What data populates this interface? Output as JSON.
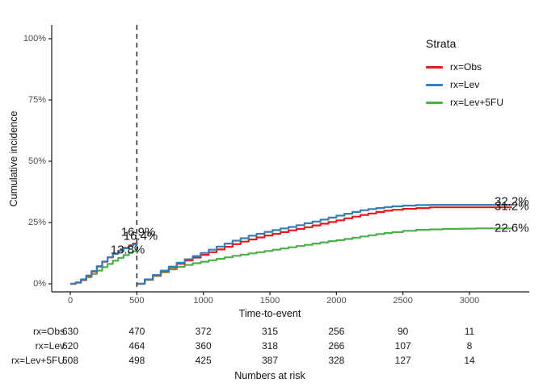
{
  "colors": {
    "obs": "#E41A1C",
    "lev": "#377EB8",
    "lev5fu": "#4DAF4A",
    "axis_line": "#1a1a1a",
    "tick_text": "#4d4d4d",
    "dashed_line": "#333333"
  },
  "axes": {
    "y_label": "Cumulative incidence",
    "x_label": "Time-to-event",
    "y_ticks": [
      "0%",
      "25%",
      "50%",
      "75%",
      "100%"
    ],
    "y_tick_values": [
      0,
      25,
      50,
      75,
      100
    ],
    "x_ticks": [
      "0",
      "500",
      "1000",
      "1500",
      "2000",
      "2500",
      "3000"
    ],
    "x_tick_values": [
      0,
      500,
      1000,
      1500,
      2000,
      2500,
      3000
    ]
  },
  "legend": {
    "title": "Strata",
    "items": [
      {
        "label": "rx=Obs",
        "color_key": "obs"
      },
      {
        "label": "rx=Lev",
        "color_key": "lev"
      },
      {
        "label": "rx=Lev+5FU",
        "color_key": "lev5fu"
      }
    ]
  },
  "annotations": {
    "at_landmark": [
      {
        "text": "16.9%",
        "series": "rx=Obs"
      },
      {
        "text": "16.4%",
        "series": "rx=Lev"
      },
      {
        "text": "13.8%",
        "series": "rx=Lev+5FU"
      }
    ],
    "at_end": [
      {
        "text": "32.2%",
        "series": "rx=Lev"
      },
      {
        "text": "31.2%",
        "series": "rx=Obs"
      },
      {
        "text": "22.6%",
        "series": "rx=Lev+5FU"
      }
    ]
  },
  "risk_table": {
    "caption": "Numbers at risk",
    "rows": [
      {
        "label": "rx=Obs",
        "values": [
          630,
          470,
          372,
          315,
          256,
          90,
          11
        ]
      },
      {
        "label": "rx=Lev",
        "values": [
          620,
          464,
          360,
          318,
          266,
          107,
          8
        ]
      },
      {
        "label": "rx=Lev+5FU",
        "values": [
          608,
          498,
          425,
          387,
          328,
          127,
          14
        ]
      }
    ]
  },
  "chart_data": {
    "type": "line",
    "title": "",
    "xlabel": "Time-to-event",
    "ylabel": "Cumulative incidence",
    "xlim": [
      0,
      3450
    ],
    "ylim": [
      0,
      100
    ],
    "grid": false,
    "legend_position": "right",
    "landmark_time": 500,
    "note": "cumulative incidence step curves; curves reset to 0 at landmark time 500 (dashed line)",
    "series": [
      {
        "name": "rx=Obs",
        "color_key": "obs",
        "value_at_landmark": 16.9,
        "value_at_end": 31.2,
        "segment1": [
          [
            0,
            0
          ],
          [
            40,
            0.5
          ],
          [
            80,
            1.6
          ],
          [
            120,
            3.2
          ],
          [
            160,
            5.0
          ],
          [
            200,
            7.0
          ],
          [
            240,
            9.0
          ],
          [
            280,
            10.8
          ],
          [
            320,
            12.3
          ],
          [
            360,
            13.5
          ],
          [
            400,
            14.7
          ],
          [
            440,
            15.7
          ],
          [
            470,
            16.4
          ],
          [
            500,
            16.9
          ]
        ],
        "segment2": [
          [
            500,
            0
          ],
          [
            560,
            1.7
          ],
          [
            620,
            3.4
          ],
          [
            680,
            5.1
          ],
          [
            740,
            6.7
          ],
          [
            800,
            8.2
          ],
          [
            860,
            9.5
          ],
          [
            920,
            10.7
          ],
          [
            980,
            11.8
          ],
          [
            1040,
            12.9
          ],
          [
            1100,
            14.0
          ],
          [
            1160,
            15.1
          ],
          [
            1220,
            16.2
          ],
          [
            1280,
            17.2
          ],
          [
            1340,
            18.1
          ],
          [
            1400,
            18.9
          ],
          [
            1460,
            19.7
          ],
          [
            1520,
            20.4
          ],
          [
            1580,
            21.1
          ],
          [
            1640,
            21.8
          ],
          [
            1700,
            22.4
          ],
          [
            1760,
            23.1
          ],
          [
            1820,
            23.8
          ],
          [
            1880,
            24.5
          ],
          [
            1940,
            25.2
          ],
          [
            2000,
            25.9
          ],
          [
            2060,
            26.7
          ],
          [
            2120,
            27.4
          ],
          [
            2180,
            28.1
          ],
          [
            2240,
            28.7
          ],
          [
            2300,
            29.3
          ],
          [
            2360,
            29.8
          ],
          [
            2420,
            30.2
          ],
          [
            2500,
            30.6
          ],
          [
            2600,
            30.9
          ],
          [
            2700,
            31.2
          ],
          [
            3320,
            31.2
          ]
        ]
      },
      {
        "name": "rx=Lev",
        "color_key": "lev",
        "value_at_landmark": 16.4,
        "value_at_end": 32.2,
        "segment1": [
          [
            0,
            0
          ],
          [
            40,
            0.6
          ],
          [
            80,
            1.8
          ],
          [
            120,
            3.4
          ],
          [
            160,
            5.2
          ],
          [
            200,
            7.2
          ],
          [
            240,
            9.1
          ],
          [
            280,
            10.8
          ],
          [
            320,
            12.2
          ],
          [
            360,
            13.4
          ],
          [
            400,
            14.5
          ],
          [
            440,
            15.4
          ],
          [
            470,
            16.0
          ],
          [
            500,
            16.4
          ]
        ],
        "segment2": [
          [
            500,
            0
          ],
          [
            560,
            1.8
          ],
          [
            620,
            3.6
          ],
          [
            680,
            5.4
          ],
          [
            740,
            7.0
          ],
          [
            800,
            8.6
          ],
          [
            860,
            10.0
          ],
          [
            920,
            11.3
          ],
          [
            980,
            12.6
          ],
          [
            1040,
            13.9
          ],
          [
            1100,
            15.2
          ],
          [
            1160,
            16.4
          ],
          [
            1220,
            17.6
          ],
          [
            1280,
            18.6
          ],
          [
            1340,
            19.6
          ],
          [
            1400,
            20.4
          ],
          [
            1460,
            21.2
          ],
          [
            1520,
            21.9
          ],
          [
            1580,
            22.6
          ],
          [
            1640,
            23.2
          ],
          [
            1700,
            23.9
          ],
          [
            1760,
            24.7
          ],
          [
            1820,
            25.4
          ],
          [
            1880,
            26.2
          ],
          [
            1940,
            27.0
          ],
          [
            2000,
            27.8
          ],
          [
            2060,
            28.6
          ],
          [
            2120,
            29.3
          ],
          [
            2180,
            30.0
          ],
          [
            2240,
            30.5
          ],
          [
            2300,
            30.9
          ],
          [
            2360,
            31.3
          ],
          [
            2420,
            31.6
          ],
          [
            2500,
            31.9
          ],
          [
            2600,
            32.1
          ],
          [
            2700,
            32.2
          ],
          [
            3320,
            32.2
          ]
        ]
      },
      {
        "name": "rx=Lev+5FU",
        "color_key": "lev5fu",
        "value_at_landmark": 13.8,
        "value_at_end": 22.6,
        "segment1": [
          [
            0,
            0
          ],
          [
            40,
            0.5
          ],
          [
            80,
            1.5
          ],
          [
            120,
            2.7
          ],
          [
            160,
            4.0
          ],
          [
            200,
            5.4
          ],
          [
            240,
            6.8
          ],
          [
            280,
            8.1
          ],
          [
            320,
            9.4
          ],
          [
            360,
            10.6
          ],
          [
            400,
            11.7
          ],
          [
            440,
            12.7
          ],
          [
            470,
            13.3
          ],
          [
            500,
            13.8
          ]
        ],
        "segment2": [
          [
            500,
            0
          ],
          [
            560,
            1.6
          ],
          [
            620,
            3.2
          ],
          [
            680,
            4.7
          ],
          [
            740,
            5.9
          ],
          [
            800,
            6.9
          ],
          [
            860,
            7.7
          ],
          [
            920,
            8.4
          ],
          [
            980,
            9.0
          ],
          [
            1040,
            9.6
          ],
          [
            1100,
            10.2
          ],
          [
            1160,
            10.8
          ],
          [
            1220,
            11.4
          ],
          [
            1280,
            11.9
          ],
          [
            1340,
            12.4
          ],
          [
            1400,
            12.9
          ],
          [
            1460,
            13.4
          ],
          [
            1520,
            13.9
          ],
          [
            1580,
            14.4
          ],
          [
            1640,
            14.9
          ],
          [
            1700,
            15.4
          ],
          [
            1760,
            15.9
          ],
          [
            1820,
            16.4
          ],
          [
            1880,
            16.9
          ],
          [
            1940,
            17.4
          ],
          [
            2000,
            17.8
          ],
          [
            2060,
            18.3
          ],
          [
            2120,
            18.8
          ],
          [
            2180,
            19.3
          ],
          [
            2240,
            19.8
          ],
          [
            2300,
            20.3
          ],
          [
            2360,
            20.7
          ],
          [
            2420,
            21.1
          ],
          [
            2500,
            21.6
          ],
          [
            2600,
            22.0
          ],
          [
            2700,
            22.2
          ],
          [
            2800,
            22.4
          ],
          [
            2950,
            22.5
          ],
          [
            3050,
            22.6
          ],
          [
            3320,
            22.6
          ]
        ]
      }
    ]
  }
}
